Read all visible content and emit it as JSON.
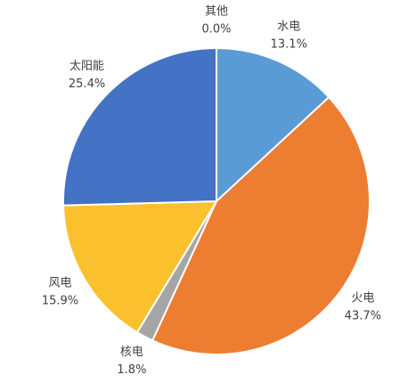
{
  "chart_data": {
    "type": "pie",
    "categories": [
      "其他",
      "水电",
      "火电",
      "核电",
      "风电",
      "太阳能"
    ],
    "values": [
      0.0,
      13.1,
      43.7,
      1.8,
      15.9,
      25.4
    ],
    "value_labels": [
      "0.0%",
      "13.1%",
      "43.7%",
      "1.8%",
      "15.9%",
      "25.4%"
    ],
    "colors": [
      "#7f7f7f",
      "#5b9bd5",
      "#ed7d31",
      "#a5a5a5",
      "#fbc02d",
      "#4472c4"
    ]
  }
}
